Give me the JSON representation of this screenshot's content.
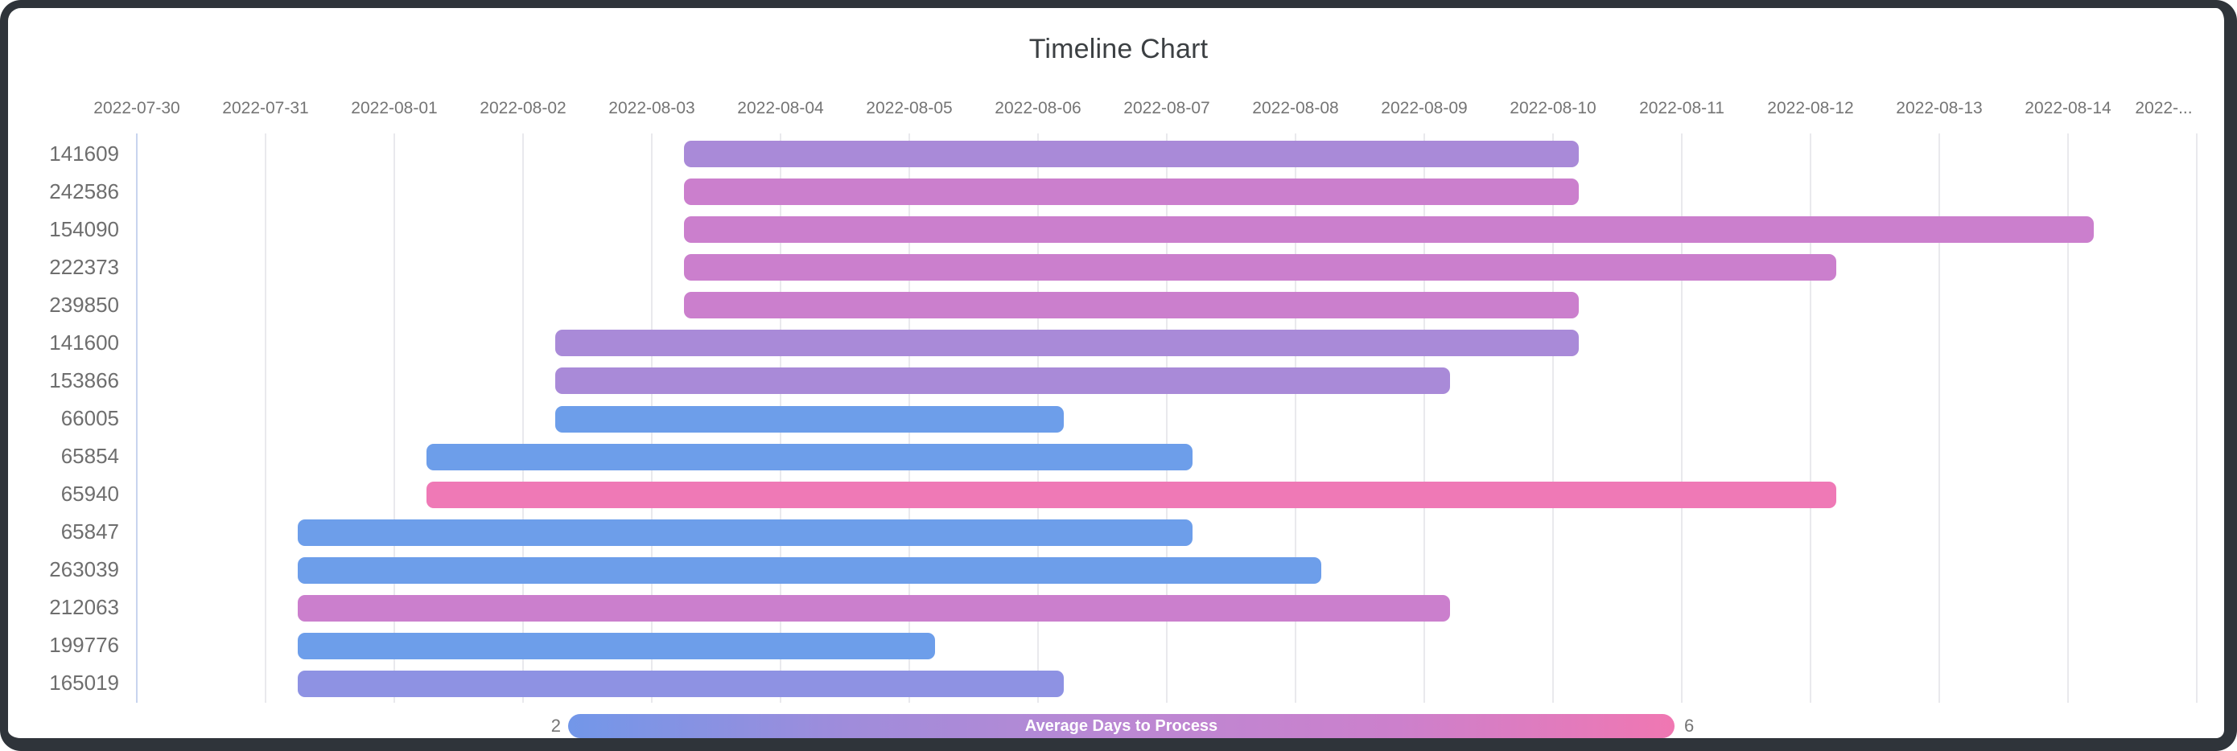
{
  "window": {
    "frame_color": "#2f343a",
    "card_background": "#ffffff"
  },
  "chart_data": {
    "type": "timeline",
    "title": "Timeline Chart",
    "x_axis": {
      "start_date": "2022-07-30",
      "days_per_tick": 1,
      "tick_labels": [
        "2022-07-30",
        "2022-07-31",
        "2022-08-01",
        "2022-08-02",
        "2022-08-03",
        "2022-08-04",
        "2022-08-05",
        "2022-08-06",
        "2022-08-07",
        "2022-08-08",
        "2022-08-09",
        "2022-08-10",
        "2022-08-11",
        "2022-08-12",
        "2022-08-13",
        "2022-08-14",
        "2022-..."
      ],
      "grid": true,
      "tick_color": "#757575",
      "gridline_color": "#e9e9ed",
      "first_gridline_color": "#c8d4ee"
    },
    "tasks": [
      {
        "label": "141609",
        "start_day": 4.25,
        "end_day": 11.2,
        "start_approx": "2022-08-03 06:00",
        "end_approx": "2022-08-10 05:00",
        "color": "#a98ad8",
        "avg_days_estimate": 3.5
      },
      {
        "label": "242586",
        "start_day": 4.25,
        "end_day": 11.2,
        "start_approx": "2022-08-03 06:00",
        "end_approx": "2022-08-10 05:00",
        "color": "#cb7fcd",
        "avg_days_estimate": 4.5
      },
      {
        "label": "154090",
        "start_day": 4.25,
        "end_day": 15.2,
        "start_approx": "2022-08-03 06:00",
        "end_approx": "2022-08-14 05:00",
        "color": "#cb7fcd",
        "avg_days_estimate": 4.5
      },
      {
        "label": "222373",
        "start_day": 4.25,
        "end_day": 13.2,
        "start_approx": "2022-08-03 06:00",
        "end_approx": "2022-08-12 05:00",
        "color": "#cb7fcd",
        "avg_days_estimate": 4.5
      },
      {
        "label": "239850",
        "start_day": 4.25,
        "end_day": 11.2,
        "start_approx": "2022-08-03 06:00",
        "end_approx": "2022-08-10 05:00",
        "color": "#cb7fcd",
        "avg_days_estimate": 4.5
      },
      {
        "label": "141600",
        "start_day": 3.25,
        "end_day": 11.2,
        "start_approx": "2022-08-02 06:00",
        "end_approx": "2022-08-10 05:00",
        "color": "#a98ad8",
        "avg_days_estimate": 3.5
      },
      {
        "label": "153866",
        "start_day": 3.25,
        "end_day": 10.2,
        "start_approx": "2022-08-02 06:00",
        "end_approx": "2022-08-09 05:00",
        "color": "#a98ad8",
        "avg_days_estimate": 3.5
      },
      {
        "label": "66005",
        "start_day": 3.25,
        "end_day": 7.2,
        "start_approx": "2022-08-02 06:00",
        "end_approx": "2022-08-06 05:00",
        "color": "#6d9eea",
        "avg_days_estimate": 2
      },
      {
        "label": "65854",
        "start_day": 2.25,
        "end_day": 8.2,
        "start_approx": "2022-08-01 06:00",
        "end_approx": "2022-08-07 05:00",
        "color": "#6d9eea",
        "avg_days_estimate": 2
      },
      {
        "label": "65940",
        "start_day": 2.25,
        "end_day": 13.2,
        "start_approx": "2022-08-01 06:00",
        "end_approx": "2022-08-12 05:00",
        "color": "#ef79b6",
        "avg_days_estimate": 6
      },
      {
        "label": "65847",
        "start_day": 1.25,
        "end_day": 8.2,
        "start_approx": "2022-07-31 06:00",
        "end_approx": "2022-08-07 05:00",
        "color": "#6d9eea",
        "avg_days_estimate": 2
      },
      {
        "label": "263039",
        "start_day": 1.25,
        "end_day": 9.2,
        "start_approx": "2022-07-31 06:00",
        "end_approx": "2022-08-08 05:00",
        "color": "#6d9eea",
        "avg_days_estimate": 2
      },
      {
        "label": "212063",
        "start_day": 1.25,
        "end_day": 10.2,
        "start_approx": "2022-07-31 06:00",
        "end_approx": "2022-08-09 05:00",
        "color": "#cb7fcd",
        "avg_days_estimate": 4.5
      },
      {
        "label": "199776",
        "start_day": 1.25,
        "end_day": 6.2,
        "start_approx": "2022-07-31 06:00",
        "end_approx": "2022-08-05 05:00",
        "color": "#6d9eea",
        "avg_days_estimate": 2
      },
      {
        "label": "165019",
        "start_day": 1.25,
        "end_day": 7.2,
        "start_approx": "2022-07-31 06:00",
        "end_approx": "2022-08-06 05:00",
        "color": "#8e92e3",
        "avg_days_estimate": 2.5
      }
    ],
    "legend": {
      "title": "Average Days to Process",
      "min_label": "2",
      "max_label": "6",
      "position": "bottom",
      "gradient": [
        "#7297e9",
        "#9f8cdb",
        "#bb88d3",
        "#cc80cc",
        "#f077b2"
      ]
    }
  }
}
